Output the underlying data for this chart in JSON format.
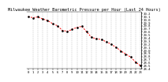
{
  "title": "Milwaukee Weather Barometric Pressure per Hour (Last 24 Hours)",
  "hours": [
    0,
    1,
    2,
    3,
    4,
    5,
    6,
    7,
    8,
    9,
    10,
    11,
    12,
    13,
    14,
    15,
    16,
    17,
    18,
    19,
    20,
    21,
    22,
    23
  ],
  "pressure": [
    30.1,
    30.06,
    30.09,
    30.02,
    29.97,
    29.87,
    29.8,
    29.65,
    29.62,
    29.68,
    29.75,
    29.78,
    29.6,
    29.42,
    29.38,
    29.35,
    29.28,
    29.2,
    29.1,
    28.98,
    28.88,
    28.78,
    28.62,
    28.5
  ],
  "ylim_min": 28.4,
  "ylim_max": 30.25,
  "line_color": "#ff0000",
  "marker_color": "#000000",
  "grid_color": "#999999",
  "bg_color": "#ffffff",
  "title_fontsize": 3.8,
  "tick_fontsize": 2.8,
  "ytick_labels": [
    "30.2",
    "30.1",
    "30.0",
    "29.9",
    "29.8",
    "29.7",
    "29.6",
    "29.5",
    "29.4",
    "29.3",
    "29.2",
    "29.1",
    "29.0",
    "28.9",
    "28.8",
    "28.7",
    "28.6",
    "28.5",
    "28.4"
  ],
  "ytick_values": [
    30.2,
    30.1,
    30.0,
    29.9,
    29.8,
    29.7,
    29.6,
    29.5,
    29.4,
    29.3,
    29.2,
    29.1,
    29.0,
    28.9,
    28.8,
    28.7,
    28.6,
    28.5,
    28.4
  ],
  "xtick_labels": [
    "0",
    "1",
    "2",
    "3",
    "4",
    "5",
    "6",
    "7",
    "8",
    "9",
    "10",
    "11",
    "12",
    "13",
    "14",
    "15",
    "16",
    "17",
    "18",
    "19",
    "20",
    "21",
    "22",
    "23"
  ],
  "vgrid_positions": [
    1,
    2,
    3,
    4,
    5,
    6,
    7,
    8,
    9,
    10,
    11,
    12,
    13,
    14,
    15,
    16,
    17,
    18,
    19,
    20,
    21,
    22,
    23
  ]
}
